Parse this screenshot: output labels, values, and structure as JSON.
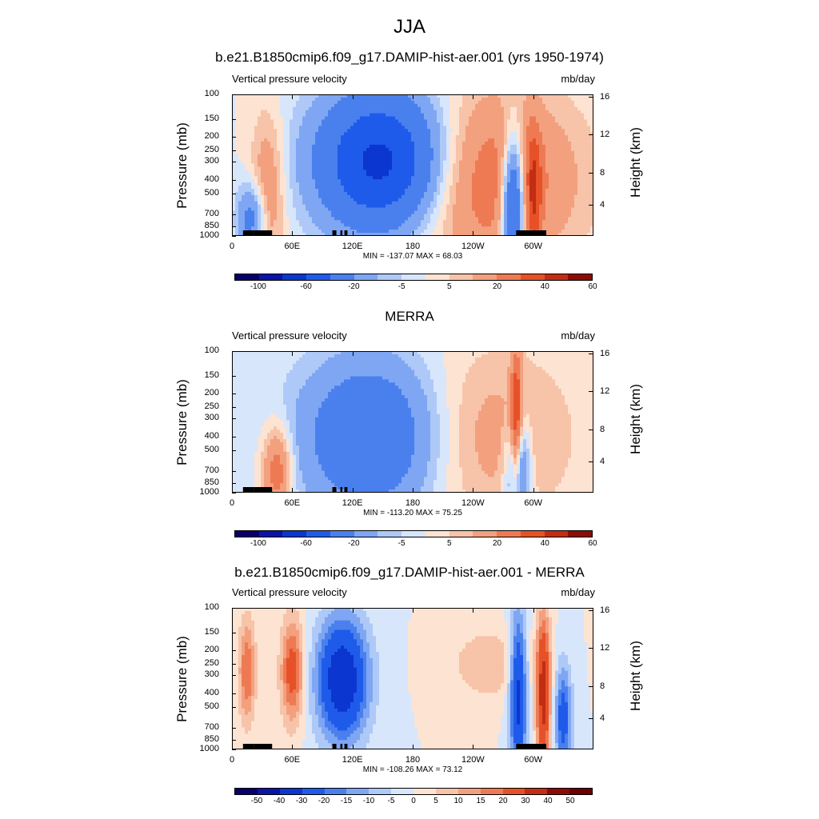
{
  "main_title": "JJA",
  "colors": {
    "scale1": [
      "#08006a",
      "#0a15a6",
      "#0b36cf",
      "#1f5bea",
      "#4a80ee",
      "#7ea6f3",
      "#aec9f7",
      "#d7e6fb",
      "#fde3d2",
      "#f7c3a9",
      "#f3a07e",
      "#ee7a54",
      "#e75127",
      "#c22d14",
      "#8c0c05"
    ],
    "scale2": [
      "#08006a",
      "#0a15a6",
      "#0b36cf",
      "#1f5bea",
      "#4a80ee",
      "#7ea6f3",
      "#aec9f7",
      "#d7e6fb",
      "#fde3d2",
      "#f7c3a9",
      "#f3a07e",
      "#ee7a54",
      "#e75127",
      "#c22d14",
      "#8c0c05",
      "#6a0000"
    ]
  },
  "panels": [
    {
      "title": "b.e21.B1850cmip6.f09_g17.DAMIP-hist-aer.001 (yrs 1950-1974)",
      "left_label": "Vertical pressure velocity",
      "right_label": "mb/day",
      "y_label": "Pressure (mb)",
      "y2_label": "Height (km)",
      "minmax": "MIN = -137.07  MAX =  68.03",
      "colorbar_labels": [
        "-100",
        "-60",
        "-20",
        "-5",
        "5",
        "20",
        "40",
        "60"
      ]
    },
    {
      "title": "MERRA",
      "left_label": "Vertical pressure velocity",
      "right_label": "mb/day",
      "y_label": "Pressure (mb)",
      "y2_label": "Height (km)",
      "minmax": "MIN = -113.20  MAX =  75.25",
      "colorbar_labels": [
        "-100",
        "-60",
        "-20",
        "-5",
        "5",
        "20",
        "40",
        "60"
      ]
    },
    {
      "title": "b.e21.B1850cmip6.f09_g17.DAMIP-hist-aer.001 - MERRA",
      "left_label": "Vertical pressure velocity",
      "right_label": "mb/day",
      "y_label": "Pressure (mb)",
      "y2_label": "Height (km)",
      "minmax": "MIN = -108.26  MAX =  73.12",
      "colorbar_labels": [
        "-50",
        "-40",
        "-30",
        "-20",
        "-15",
        "-10",
        "-5",
        "0",
        "5",
        "10",
        "15",
        "20",
        "30",
        "40",
        "50"
      ]
    }
  ],
  "chart_data": [
    {
      "type": "heatmap",
      "title": "b.e21.B1850cmip6.f09_g17.DAMIP-hist-aer.001 (yrs 1950-1974)",
      "x_ticks": [
        "0",
        "60E",
        "120E",
        "180",
        "120W",
        "60W"
      ],
      "y_ticks": [
        "100",
        "150",
        "200",
        "250",
        "300",
        "400",
        "500",
        "700",
        "850",
        "1000"
      ],
      "y2_ticks": [
        "16",
        "12",
        "8",
        "4"
      ],
      "xlim": [
        0,
        360
      ],
      "ylim": [
        1000,
        100
      ],
      "y_scale": "log",
      "min": -137.07,
      "max": 68.03,
      "features": [
        {
          "lon": 150,
          "p": 300,
          "value": -70,
          "sigma_lon": 45,
          "sigma_p": 0.8
        },
        {
          "lon": 255,
          "p": 400,
          "value": 30,
          "sigma_lon": 60,
          "sigma_p": 1.0
        },
        {
          "lon": 35,
          "p": 500,
          "value": 20,
          "sigma_lon": 12,
          "sigma_p": 0.9
        },
        {
          "lon": 20,
          "p": 750,
          "value": -30,
          "sigma_lon": 10,
          "sigma_p": 0.4
        },
        {
          "lon": 280,
          "p": 600,
          "value": -60,
          "sigma_lon": 8,
          "sigma_p": 0.8
        },
        {
          "lon": 300,
          "p": 500,
          "value": 25,
          "sigma_lon": 6,
          "sigma_p": 0.8
        }
      ]
    },
    {
      "type": "heatmap",
      "title": "MERRA",
      "x_ticks": [
        "0",
        "60E",
        "120E",
        "180",
        "120W",
        "60W"
      ],
      "y_ticks": [
        "100",
        "150",
        "200",
        "250",
        "300",
        "400",
        "500",
        "700",
        "850",
        "1000"
      ],
      "y2_ticks": [
        "16",
        "12",
        "8",
        "4"
      ],
      "xlim": [
        0,
        360
      ],
      "ylim": [
        1000,
        100
      ],
      "y_scale": "log",
      "min": -113.2,
      "max": 75.25,
      "features": [
        {
          "lon": 140,
          "p": 400,
          "value": -40,
          "sigma_lon": 50,
          "sigma_p": 0.9
        },
        {
          "lon": 250,
          "p": 400,
          "value": 15,
          "sigma_lon": 60,
          "sigma_p": 1.0
        },
        {
          "lon": 45,
          "p": 700,
          "value": 30,
          "sigma_lon": 10,
          "sigma_p": 0.5
        },
        {
          "lon": 285,
          "p": 700,
          "value": -40,
          "sigma_lon": 8,
          "sigma_p": 0.6
        },
        {
          "lon": 283,
          "p": 350,
          "value": 40,
          "sigma_lon": 4,
          "sigma_p": 0.9
        }
      ]
    },
    {
      "type": "heatmap",
      "title": "b.e21.B1850cmip6.f09_g17.DAMIP-hist-aer.001 - MERRA",
      "x_ticks": [
        "0",
        "60E",
        "120E",
        "180",
        "120W",
        "60W"
      ],
      "y_ticks": [
        "100",
        "150",
        "200",
        "250",
        "300",
        "400",
        "500",
        "700",
        "850",
        "1000"
      ],
      "y2_ticks": [
        "16",
        "12",
        "8",
        "4"
      ],
      "xlim": [
        0,
        360
      ],
      "ylim": [
        1000,
        100
      ],
      "y_scale": "log",
      "min": -108.26,
      "max": 73.12,
      "features": [
        {
          "lon": 110,
          "p": 320,
          "value": -40,
          "sigma_lon": 18,
          "sigma_p": 0.7
        },
        {
          "lon": 60,
          "p": 280,
          "value": 25,
          "sigma_lon": 8,
          "sigma_p": 0.6
        },
        {
          "lon": 15,
          "p": 280,
          "value": 20,
          "sigma_lon": 6,
          "sigma_p": 0.6
        },
        {
          "lon": 255,
          "p": 250,
          "value": 10,
          "sigma_lon": 25,
          "sigma_p": 0.4
        },
        {
          "lon": 285,
          "p": 400,
          "value": -35,
          "sigma_lon": 6,
          "sigma_p": 0.9
        },
        {
          "lon": 310,
          "p": 400,
          "value": 35,
          "sigma_lon": 5,
          "sigma_p": 0.9
        },
        {
          "lon": 330,
          "p": 600,
          "value": -25,
          "sigma_lon": 6,
          "sigma_p": 0.6
        }
      ]
    }
  ]
}
